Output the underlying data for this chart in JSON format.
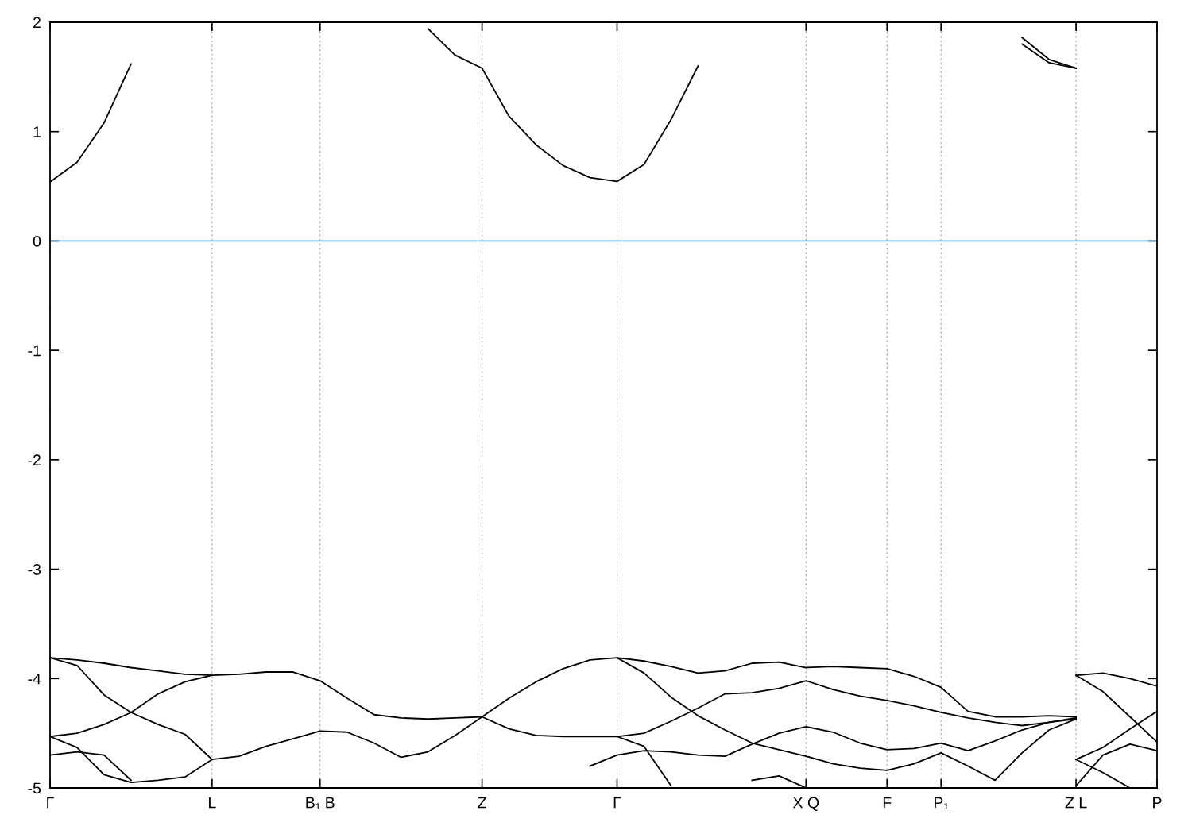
{
  "chart_data": {
    "type": "line",
    "categories": [
      "Γ",
      null,
      null,
      null,
      null,
      null,
      "L",
      null,
      null,
      null,
      "B₁ B",
      null,
      null,
      null,
      null,
      null,
      "Z",
      null,
      null,
      null,
      null,
      "Γ",
      null,
      null,
      null,
      null,
      null,
      null,
      "X Q",
      null,
      null,
      "F",
      null,
      "P₁",
      null,
      null,
      null,
      null,
      "Z L",
      null,
      null,
      "P"
    ],
    "ylim": [
      -5,
      2
    ],
    "yticks": [
      -5,
      -4,
      -3,
      -2,
      -1,
      0,
      1,
      2
    ],
    "grid": "x",
    "marker": "none",
    "line_style": "solid",
    "ref_lines": [
      {
        "axis": "y",
        "value": 0,
        "color": "#56b4e9"
      }
    ],
    "series": [
      {
        "color": "#000000",
        "values": [
          -3.81,
          -3.83,
          -3.86,
          -3.9,
          -3.93,
          -3.96,
          -3.97,
          -3.96,
          -3.94,
          -3.94,
          -4.02,
          -4.18,
          -4.33,
          -4.36,
          -4.37,
          -4.36,
          -4.35,
          -4.18,
          -4.03,
          -3.91,
          -3.83,
          -3.81,
          -3.84,
          -3.89,
          -3.95,
          -3.93,
          -3.86,
          -3.85,
          -3.9,
          -3.89,
          -3.9,
          -3.91,
          -3.98,
          -4.08,
          -4.3,
          -4.35,
          -4.35,
          -4.34,
          -4.35,
          null,
          null,
          null
        ]
      },
      {
        "color": "#000000",
        "values": [
          null,
          null,
          null,
          null,
          null,
          null,
          null,
          null,
          null,
          null,
          null,
          null,
          null,
          null,
          null,
          null,
          null,
          null,
          null,
          null,
          null,
          null,
          null,
          null,
          null,
          null,
          null,
          null,
          null,
          null,
          null,
          null,
          null,
          null,
          null,
          null,
          null,
          null,
          -3.97,
          -3.95,
          -4.0,
          -4.07
        ]
      },
      {
        "color": "#000000",
        "values": [
          -3.81,
          -3.88,
          -4.15,
          -4.31,
          -4.42,
          -4.51,
          -4.74,
          -4.71,
          -4.62,
          -4.55,
          -4.48,
          -4.49,
          -4.59,
          -4.72,
          -4.67,
          -4.52,
          -4.35,
          -4.46,
          -4.52,
          -4.53,
          -4.53,
          -4.53,
          -4.5,
          -4.39,
          -4.27,
          -4.14,
          -4.13,
          -4.09,
          -4.02,
          -4.1,
          -4.16,
          -4.2,
          -4.25,
          -4.31,
          -4.36,
          -4.4,
          -4.43,
          -4.4,
          -4.37,
          null,
          null,
          null
        ]
      },
      {
        "color": "#000000",
        "values": [
          null,
          null,
          null,
          null,
          null,
          null,
          null,
          null,
          null,
          null,
          null,
          null,
          null,
          null,
          null,
          null,
          null,
          null,
          null,
          null,
          null,
          null,
          null,
          null,
          null,
          null,
          null,
          null,
          null,
          null,
          null,
          null,
          null,
          null,
          null,
          null,
          null,
          null,
          -4.74,
          -4.63,
          -4.46,
          -4.3
        ]
      },
      {
        "color": "#000000",
        "values": [
          -4.53,
          -4.5,
          -4.42,
          -4.31,
          -4.14,
          -4.03,
          -3.97,
          null,
          null,
          null,
          null,
          null,
          null,
          null,
          null,
          null,
          null,
          null,
          null,
          null,
          null,
          null,
          null,
          null,
          null,
          null,
          null,
          null,
          null,
          null,
          null,
          null,
          null,
          null,
          null,
          null,
          null,
          null,
          null,
          null,
          null,
          null
        ]
      },
      {
        "color": "#000000",
        "values": [
          null,
          null,
          null,
          null,
          null,
          null,
          null,
          null,
          null,
          null,
          null,
          null,
          null,
          null,
          null,
          null,
          null,
          null,
          null,
          null,
          null,
          null,
          null,
          null,
          null,
          null,
          null,
          null,
          null,
          null,
          null,
          null,
          null,
          null,
          null,
          null,
          null,
          null,
          -3.97,
          -4.12,
          -4.35,
          -4.58
        ]
      },
      {
        "color": "#000000",
        "values": [
          -4.53,
          -4.63,
          -4.88,
          -4.95,
          -4.93,
          -4.9,
          -4.74,
          null,
          null,
          null,
          null,
          null,
          null,
          null,
          null,
          null,
          null,
          null,
          null,
          null,
          null,
          null,
          null,
          null,
          null,
          null,
          null,
          null,
          null,
          null,
          null,
          null,
          null,
          null,
          null,
          null,
          null,
          null,
          null,
          null,
          null,
          null
        ]
      },
      {
        "color": "#000000",
        "values": [
          -4.7,
          -4.67,
          -4.7,
          -4.93,
          null,
          null,
          null,
          null,
          null,
          null,
          null,
          null,
          null,
          null,
          null,
          null,
          null,
          null,
          null,
          null,
          null,
          null,
          null,
          null,
          null,
          null,
          null,
          null,
          null,
          null,
          null,
          null,
          null,
          null,
          null,
          null,
          null,
          null,
          null,
          null,
          null,
          null
        ]
      },
      {
        "color": "#000000",
        "values": [
          null,
          null,
          null,
          null,
          null,
          null,
          null,
          null,
          null,
          null,
          null,
          null,
          null,
          null,
          null,
          null,
          null,
          null,
          null,
          null,
          null,
          null,
          null,
          null,
          null,
          null,
          -4.93,
          -4.89,
          -5.0,
          null,
          null,
          null,
          null,
          null,
          null,
          null,
          null,
          null,
          null,
          null,
          null,
          null
        ]
      },
      {
        "color": "#000000",
        "values": [
          null,
          null,
          null,
          null,
          null,
          null,
          null,
          null,
          null,
          null,
          null,
          null,
          null,
          null,
          null,
          null,
          null,
          null,
          null,
          null,
          null,
          -3.81,
          -3.95,
          -4.17,
          -4.34,
          -4.47,
          -4.59,
          -4.65,
          -4.71,
          -4.78,
          -4.82,
          -4.84,
          -4.78,
          -4.68,
          -4.8,
          -4.93,
          -4.68,
          -4.47,
          -4.37,
          null,
          null,
          null
        ]
      },
      {
        "color": "#000000",
        "values": [
          null,
          null,
          null,
          null,
          null,
          null,
          null,
          null,
          null,
          null,
          null,
          null,
          null,
          null,
          null,
          null,
          null,
          null,
          null,
          null,
          null,
          null,
          null,
          null,
          null,
          null,
          null,
          null,
          null,
          null,
          null,
          null,
          null,
          null,
          null,
          null,
          null,
          null,
          -4.74,
          -4.86,
          -5.0,
          null
        ]
      },
      {
        "color": "#000000",
        "values": [
          null,
          null,
          null,
          null,
          null,
          null,
          null,
          null,
          null,
          null,
          null,
          null,
          null,
          null,
          null,
          null,
          null,
          null,
          null,
          null,
          null,
          -4.53,
          -4.62,
          -4.98,
          null,
          null,
          null,
          null,
          null,
          null,
          null,
          null,
          null,
          null,
          null,
          null,
          null,
          null,
          null,
          null,
          null,
          null
        ]
      },
      {
        "color": "#000000",
        "values": [
          null,
          null,
          null,
          null,
          null,
          null,
          null,
          null,
          null,
          null,
          null,
          null,
          null,
          null,
          null,
          null,
          null,
          null,
          null,
          null,
          -4.8,
          -4.7,
          -4.66,
          -4.67,
          -4.7,
          -4.71,
          -4.6,
          -4.5,
          -4.44,
          -4.49,
          -4.59,
          -4.65,
          -4.64,
          -4.59,
          -4.66,
          -4.57,
          -4.47,
          -4.4,
          -4.36,
          null,
          null,
          null
        ]
      },
      {
        "color": "#000000",
        "values": [
          null,
          null,
          null,
          null,
          null,
          null,
          null,
          null,
          null,
          null,
          null,
          null,
          null,
          null,
          null,
          null,
          null,
          null,
          null,
          null,
          null,
          null,
          null,
          null,
          null,
          null,
          null,
          null,
          null,
          null,
          null,
          null,
          null,
          null,
          null,
          null,
          null,
          null,
          -4.98,
          -4.7,
          -4.6,
          -4.66
        ]
      },
      {
        "color": "#000000",
        "values": [
          0.54,
          0.72,
          1.08,
          1.62,
          null,
          null,
          null,
          null,
          null,
          null,
          null,
          null,
          null,
          null,
          null,
          null,
          null,
          null,
          null,
          null,
          null,
          null,
          null,
          null,
          null,
          null,
          null,
          null,
          null,
          null,
          null,
          null,
          null,
          null,
          null,
          null,
          null,
          null,
          null,
          null,
          null,
          null
        ]
      },
      {
        "color": "#000000",
        "values": [
          null,
          null,
          null,
          null,
          null,
          null,
          null,
          null,
          null,
          null,
          null,
          null,
          null,
          null,
          1.94,
          1.7,
          1.58,
          null,
          null,
          null,
          null,
          null,
          null,
          null,
          null,
          null,
          null,
          null,
          null,
          null,
          null,
          null,
          null,
          null,
          null,
          null,
          null,
          null,
          null,
          null,
          null,
          null
        ]
      },
      {
        "color": "#000000",
        "values": [
          null,
          null,
          null,
          null,
          null,
          null,
          null,
          null,
          null,
          null,
          null,
          null,
          null,
          null,
          null,
          null,
          1.58,
          1.14,
          0.88,
          0.69,
          0.58,
          0.545,
          0.7,
          1.11,
          1.6,
          null,
          null,
          null,
          null,
          null,
          null,
          null,
          null,
          null,
          null,
          null,
          null,
          null,
          null,
          null,
          null,
          null
        ]
      },
      {
        "color": "#000000",
        "values": [
          null,
          null,
          null,
          null,
          null,
          null,
          null,
          null,
          null,
          null,
          null,
          null,
          null,
          null,
          null,
          null,
          null,
          null,
          null,
          null,
          null,
          null,
          null,
          null,
          null,
          null,
          null,
          null,
          null,
          null,
          null,
          null,
          null,
          null,
          null,
          null,
          1.8,
          1.63,
          1.58,
          null,
          null,
          null
        ]
      },
      {
        "color": "#000000",
        "values": [
          null,
          null,
          null,
          null,
          null,
          null,
          null,
          null,
          null,
          null,
          null,
          null,
          null,
          null,
          null,
          null,
          null,
          null,
          null,
          null,
          null,
          null,
          null,
          null,
          null,
          null,
          null,
          null,
          null,
          null,
          null,
          null,
          null,
          null,
          null,
          null,
          1.86,
          1.66,
          1.58,
          null,
          null,
          null
        ]
      }
    ]
  }
}
